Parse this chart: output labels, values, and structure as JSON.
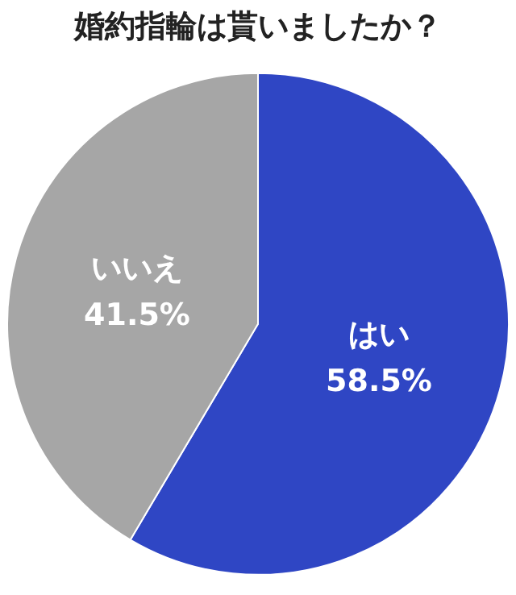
{
  "chart_data": {
    "type": "pie",
    "title": "婚約指輪は貰いましたか？",
    "categories": [
      "はい",
      "いいえ"
    ],
    "values": [
      58.5,
      41.5
    ],
    "colors": [
      "#2f46c4",
      "#a6a6a6"
    ],
    "value_labels": [
      "58.5%",
      "41.5%"
    ],
    "legend": false
  }
}
